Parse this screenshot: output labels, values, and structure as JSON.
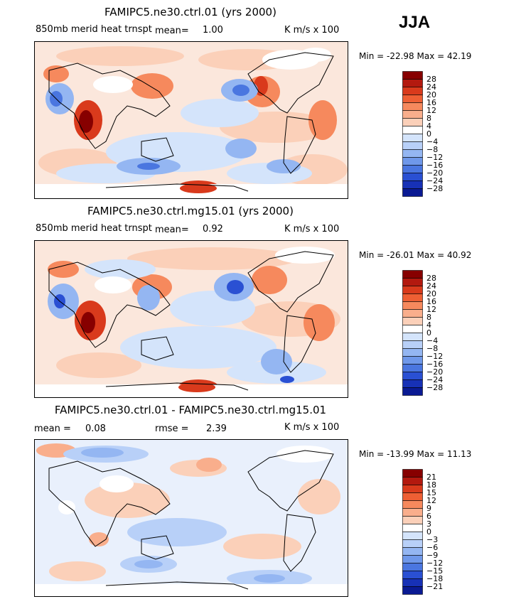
{
  "season": "JJA",
  "colors": {
    "reds": [
      "#870000",
      "#b3190f",
      "#d93a1c",
      "#ee5f34",
      "#f6895d",
      "#f9ae8c",
      "#fbd0b9"
    ],
    "white": "#ffffff",
    "blues": [
      "#d4e4fb",
      "#b8d0f8",
      "#94b6f2",
      "#6f98ea",
      "#4a76e0",
      "#2a50d3",
      "#1731b6",
      "#0a1a93"
    ]
  },
  "chart_data": [
    {
      "type": "heatmap",
      "title": "FAMIPC5.ne30.ctrl.01 (yrs 2000)",
      "variable": "850mb merid heat trnspt",
      "mean_label": "mean=",
      "mean_value": "1.00",
      "units": "K m/s x 100",
      "min_label": "Min =",
      "min": "-22.98",
      "max_label": "Max =",
      "max": "42.19",
      "levels": [
        "28",
        "24",
        "20",
        "16",
        "12",
        "8",
        "4",
        "0",
        "−4",
        "−8",
        "−12",
        "−16",
        "−20",
        "−24",
        "−28"
      ]
    },
    {
      "type": "heatmap",
      "title": "FAMIPC5.ne30.ctrl.mg15.01 (yrs 2000)",
      "variable": "850mb merid heat trnspt",
      "mean_label": "mean=",
      "mean_value": "0.92",
      "units": "K m/s x 100",
      "min_label": "Min =",
      "min": "-26.01",
      "max_label": "Max =",
      "max": "40.92",
      "levels": [
        "28",
        "24",
        "20",
        "16",
        "12",
        "8",
        "4",
        "0",
        "−4",
        "−8",
        "−12",
        "−16",
        "−20",
        "−24",
        "−28"
      ]
    },
    {
      "type": "heatmap",
      "title": "FAMIPC5.ne30.ctrl.01 - FAMIPC5.ne30.ctrl.mg15.01",
      "mean_label": "mean =",
      "mean_value": "0.08",
      "rmse_label": "rmse =",
      "rmse_value": "2.39",
      "units": "K m/s x 100",
      "min_label": "Min =",
      "min": "-13.99",
      "max_label": "Max =",
      "max": "11.13",
      "levels": [
        "21",
        "18",
        "15",
        "12",
        "9",
        "6",
        "3",
        "0",
        "−3",
        "−6",
        "−9",
        "−12",
        "−15",
        "−18",
        "−21"
      ]
    }
  ]
}
